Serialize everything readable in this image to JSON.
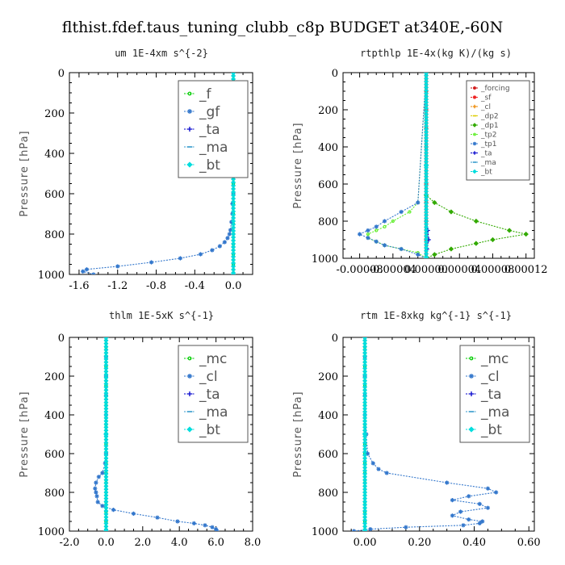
{
  "figure": {
    "title": "flthist.fdef.taus_tuning_clubb_c8p  BUDGET at340E,-60N"
  },
  "chart_data": [
    {
      "type": "line",
      "title": "um   1E-4xm  s^{-2}",
      "ylabel": "Pressure [hPa]",
      "xlabel": "",
      "xlim": [
        -1.7,
        0.2
      ],
      "ylim": [
        1000,
        0
      ],
      "xticks": [
        -1.6,
        -1.2,
        -0.8,
        -0.4,
        0.0
      ],
      "xticklabels": [
        "-1.6",
        "-1.2",
        "-0.8",
        "-0.4",
        "0.0"
      ],
      "yticks": [
        0,
        200,
        400,
        600,
        800,
        1000
      ],
      "legend": {
        "placement": "top-right",
        "size": "large"
      },
      "series": [
        {
          "name": "_f",
          "color": "#00cc00",
          "marker": "circle",
          "y": [
            0,
            50,
            100,
            150,
            200,
            250,
            300,
            350,
            400,
            450,
            500,
            550,
            600,
            650,
            700,
            750,
            800,
            850,
            900,
            950,
            1000
          ],
          "values": [
            0,
            0,
            0,
            0,
            0,
            0,
            0,
            0,
            0,
            0,
            0,
            0,
            0,
            0,
            0,
            0,
            0,
            0,
            0,
            0,
            0
          ]
        },
        {
          "name": "_gf",
          "color": "#3377cc",
          "marker": "star",
          "y": [
            0,
            100,
            200,
            300,
            400,
            500,
            600,
            650,
            700,
            740,
            780,
            800,
            820,
            840,
            860,
            880,
            900,
            920,
            940,
            960,
            975,
            985,
            1000
          ],
          "values": [
            0,
            0,
            0,
            0,
            0,
            0,
            0,
            -0.01,
            -0.01,
            -0.02,
            -0.03,
            -0.04,
            -0.06,
            -0.09,
            -0.14,
            -0.22,
            -0.34,
            -0.55,
            -0.85,
            -1.2,
            -1.52,
            -1.56,
            -1.45
          ]
        },
        {
          "name": "_ta",
          "color": "#0000cc",
          "marker": "plus",
          "y": [
            0,
            500,
            1000
          ],
          "values": [
            0,
            0,
            0
          ]
        },
        {
          "name": "_ma",
          "color": "#3399cc",
          "marker": "dash",
          "y": [
            0,
            500,
            1000
          ],
          "values": [
            0,
            0,
            0
          ]
        },
        {
          "name": "_bt",
          "color": "#00dddd",
          "marker": "diamond",
          "y": [
            0,
            500,
            1000
          ],
          "values": [
            0,
            0,
            0
          ]
        }
      ]
    },
    {
      "type": "line",
      "title": "rtpthlp   1E-4x(kg K)/(kg s)",
      "ylabel": "Pressure [hPa]",
      "xlabel": "",
      "xlim": [
        -0.0001,
        0.00013
      ],
      "ylim": [
        1000,
        0
      ],
      "xticks": [
        -8e-05,
        -4e-05,
        0.0,
        4e-05,
        8e-05,
        0.00012
      ],
      "xticklabels": [
        "-0.00008",
        "-0.00004",
        "0.00000",
        "0.00004",
        "0.00008",
        "0.00012"
      ],
      "yticks": [
        0,
        200,
        400,
        600,
        800,
        1000
      ],
      "legend": {
        "placement": "top-right",
        "size": "small"
      },
      "series": [
        {
          "name": "_forcing",
          "color": "#cc0000",
          "marker": "circle",
          "y": [
            0,
            100,
            200,
            300,
            400,
            500,
            600,
            700,
            800,
            900,
            1000
          ],
          "values": [
            0,
            0,
            0,
            0,
            0,
            0,
            0,
            0,
            0,
            0,
            0
          ]
        },
        {
          "name": "_sf",
          "color": "#ee2222",
          "marker": "star",
          "y": [
            0,
            100,
            200,
            300,
            400,
            500,
            600,
            700,
            800,
            900,
            1000
          ],
          "values": [
            0,
            0,
            0,
            0,
            0,
            0,
            0,
            0,
            0,
            0,
            0
          ]
        },
        {
          "name": "_cl",
          "color": "#ee8800",
          "marker": "plus",
          "y": [
            0,
            500,
            1000
          ],
          "values": [
            0,
            0,
            0
          ]
        },
        {
          "name": "_dp2",
          "color": "#ddcc00",
          "marker": "dash",
          "y": [
            0,
            500,
            1000
          ],
          "values": [
            0,
            0,
            0
          ]
        },
        {
          "name": "_dp1",
          "color": "#33aa00",
          "marker": "diamond",
          "y": [
            0,
            660,
            700,
            750,
            800,
            850,
            870,
            900,
            920,
            950,
            980,
            1000
          ],
          "values": [
            0,
            0,
            1e-05,
            3e-05,
            6e-05,
            0.0001,
            0.00012,
            8e-05,
            6e-05,
            3e-05,
            1e-05,
            0
          ]
        },
        {
          "name": "_tp2",
          "color": "#66ee33",
          "marker": "circle",
          "y": [
            0,
            700,
            750,
            800,
            830,
            850,
            870,
            890,
            910,
            930,
            950,
            970,
            1000
          ],
          "values": [
            0,
            -1e-05,
            -2e-05,
            -4e-05,
            -5e-05,
            -6e-05,
            -7e-05,
            -7e-05,
            -6e-05,
            -5e-05,
            -3e-05,
            -1e-05,
            0
          ]
        },
        {
          "name": "_tp1",
          "color": "#3377cc",
          "marker": "star",
          "y": [
            0,
            700,
            750,
            800,
            830,
            850,
            870,
            890,
            910,
            930,
            950,
            980,
            1000
          ],
          "values": [
            0,
            -1e-05,
            -3e-05,
            -5e-05,
            -6e-05,
            -7e-05,
            -8e-05,
            -7e-05,
            -6e-05,
            -5e-05,
            -3e-05,
            -1e-05,
            0
          ]
        },
        {
          "name": "_ta",
          "color": "#0000cc",
          "marker": "plus",
          "y": [
            0,
            800,
            850,
            900,
            950,
            1000
          ],
          "values": [
            0,
            0,
            2e-06,
            3e-06,
            1e-06,
            0
          ]
        },
        {
          "name": "_ma",
          "color": "#3399cc",
          "marker": "dash",
          "y": [
            0,
            500,
            1000
          ],
          "values": [
            0,
            0,
            0
          ]
        },
        {
          "name": "_bt",
          "color": "#00dddd",
          "marker": "diamond",
          "y": [
            0,
            500,
            1000
          ],
          "values": [
            0,
            0,
            0
          ]
        }
      ]
    },
    {
      "type": "line",
      "title": "thlm   1E-5xK  s^{-1}",
      "ylabel": "Pressure [hPa]",
      "xlabel": "",
      "xlim": [
        -2.0,
        8.0
      ],
      "ylim": [
        1000,
        0
      ],
      "xticks": [
        -2.0,
        0.0,
        2.0,
        4.0,
        6.0,
        8.0
      ],
      "xticklabels": [
        "-2.0",
        "0.0",
        "2.0",
        "4.0",
        "6.0",
        "8.0"
      ],
      "yticks": [
        0,
        200,
        400,
        600,
        800,
        1000
      ],
      "legend": {
        "placement": "top-right",
        "size": "large"
      },
      "series": [
        {
          "name": "_mc",
          "color": "#00cc00",
          "marker": "circle",
          "y": [
            0,
            50,
            100,
            150,
            200,
            250,
            300,
            350,
            400,
            450,
            500,
            550,
            600,
            650,
            700,
            750,
            800,
            850,
            900,
            950,
            1000
          ],
          "values": [
            0,
            0,
            0,
            0,
            0,
            0,
            0,
            0,
            0,
            0,
            0,
            0,
            0,
            0,
            0,
            0,
            0,
            0,
            0,
            0,
            0
          ]
        },
        {
          "name": "_cl",
          "color": "#3377cc",
          "marker": "star",
          "y": [
            0,
            100,
            200,
            300,
            400,
            500,
            600,
            650,
            700,
            720,
            750,
            780,
            800,
            820,
            850,
            870,
            890,
            910,
            930,
            950,
            960,
            970,
            980,
            990,
            1000
          ],
          "values": [
            0,
            0,
            0,
            0,
            0,
            0,
            0,
            -0.05,
            -0.2,
            -0.4,
            -0.55,
            -0.6,
            -0.55,
            -0.5,
            -0.45,
            -0.2,
            0.4,
            1.5,
            2.8,
            3.9,
            4.8,
            5.4,
            5.8,
            6.0,
            6.05
          ]
        },
        {
          "name": "_ta",
          "color": "#0000cc",
          "marker": "plus",
          "y": [
            0,
            500,
            1000
          ],
          "values": [
            0,
            0,
            0
          ]
        },
        {
          "name": "_ma",
          "color": "#3399cc",
          "marker": "dash",
          "y": [
            0,
            500,
            1000
          ],
          "values": [
            0,
            0,
            0
          ]
        },
        {
          "name": "_bt",
          "color": "#00dddd",
          "marker": "diamond",
          "y": [
            0,
            500,
            1000
          ],
          "values": [
            0,
            0,
            0
          ]
        }
      ]
    },
    {
      "type": "line",
      "title": "rtm   1E-8xkg kg^{-1} s^{-1}",
      "ylabel": "Pressure [hPa]",
      "xlabel": "",
      "xlim": [
        -0.08,
        0.62
      ],
      "ylim": [
        1000,
        0
      ],
      "xticks": [
        0.0,
        0.2,
        0.4,
        0.6
      ],
      "xticklabels": [
        "0.00",
        "0.20",
        "0.40",
        "0.60"
      ],
      "yticks": [
        0,
        200,
        400,
        600,
        800,
        1000
      ],
      "legend": {
        "placement": "top-right",
        "size": "large"
      },
      "series": [
        {
          "name": "_mc",
          "color": "#00cc00",
          "marker": "circle",
          "y": [
            0,
            50,
            100,
            150,
            200,
            250,
            300,
            350,
            400,
            450,
            500,
            550,
            600,
            650,
            700,
            750,
            800,
            850,
            900,
            950,
            1000
          ],
          "values": [
            0,
            0,
            0,
            0,
            0,
            0,
            0,
            0,
            0,
            0,
            0,
            0,
            0,
            0,
            0,
            0,
            0,
            0,
            0,
            0,
            0
          ]
        },
        {
          "name": "_cl",
          "color": "#3377cc",
          "marker": "star",
          "y": [
            0,
            100,
            200,
            300,
            400,
            500,
            600,
            650,
            680,
            700,
            750,
            780,
            800,
            820,
            840,
            860,
            880,
            900,
            920,
            940,
            950,
            960,
            970,
            980,
            990,
            1000
          ],
          "values": [
            0,
            0,
            0,
            0,
            0,
            0.005,
            0.01,
            0.03,
            0.05,
            0.08,
            0.3,
            0.45,
            0.48,
            0.38,
            0.32,
            0.42,
            0.45,
            0.35,
            0.32,
            0.38,
            0.43,
            0.42,
            0.36,
            0.15,
            0.02,
            -0.04
          ]
        },
        {
          "name": "_ta",
          "color": "#0000cc",
          "marker": "plus",
          "y": [
            0,
            500,
            1000
          ],
          "values": [
            0,
            0,
            0
          ]
        },
        {
          "name": "_ma",
          "color": "#3399cc",
          "marker": "dash",
          "y": [
            0,
            500,
            1000
          ],
          "values": [
            0,
            0,
            0
          ]
        },
        {
          "name": "_bt",
          "color": "#00dddd",
          "marker": "diamond",
          "y": [
            0,
            500,
            1000
          ],
          "values": [
            0,
            0,
            0
          ]
        }
      ]
    }
  ]
}
